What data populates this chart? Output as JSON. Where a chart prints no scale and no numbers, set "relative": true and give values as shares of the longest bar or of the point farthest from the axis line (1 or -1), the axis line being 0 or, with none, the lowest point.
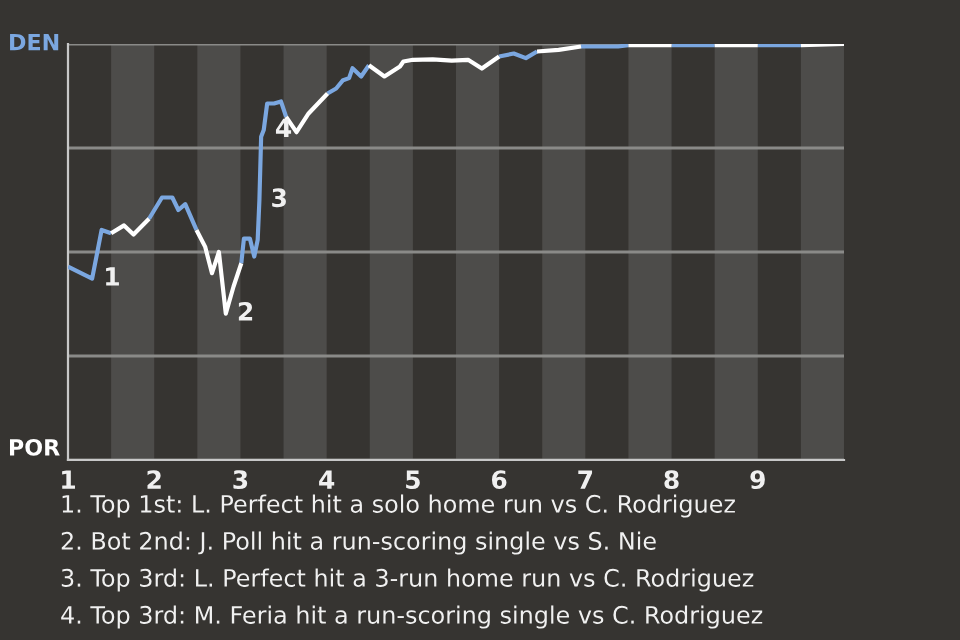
{
  "chart_data": {
    "type": "line",
    "relative": true,
    "series": [
      {
        "color": "#7ba7e0",
        "x": [
          1.0,
          1.28,
          1.39,
          1.5,
          null,
          1.94,
          2.09,
          2.21,
          2.28,
          2.36,
          2.49,
          null,
          3.01,
          3.04,
          3.11,
          3.16,
          3.2,
          3.22,
          3.24,
          3.27,
          3.31,
          3.39,
          3.47,
          3.53,
          null,
          4.01,
          4.11,
          4.19,
          4.26,
          4.3,
          4.4,
          4.49,
          null,
          6.0,
          6.17,
          6.31,
          6.44,
          null,
          6.95,
          7.38,
          7.5,
          null,
          8.0,
          8.5,
          null,
          9.0,
          9.5
        ],
        "values": [
          0.465,
          0.436,
          0.553,
          0.545,
          null,
          0.58,
          0.631,
          0.631,
          0.601,
          0.615,
          0.553,
          null,
          0.473,
          0.532,
          0.532,
          0.489,
          0.529,
          0.625,
          0.777,
          0.793,
          0.857,
          0.857,
          0.862,
          0.825,
          null,
          0.881,
          0.893,
          0.913,
          0.918,
          0.942,
          0.922,
          0.949,
          null,
          0.97,
          0.977,
          0.966,
          0.982,
          null,
          0.994,
          0.994,
          0.997,
          null,
          0.997,
          0.997,
          null,
          0.997,
          0.997
        ]
      },
      {
        "color": "#ffffff",
        "x": [
          1.5,
          1.65,
          1.76,
          1.94,
          null,
          2.49,
          2.59,
          2.67,
          2.75,
          2.83,
          2.92,
          3.01,
          null,
          3.53,
          3.65,
          3.79,
          4.01,
          null,
          4.49,
          4.67,
          4.85,
          4.89,
          5.0,
          5.23,
          5.45,
          5.64,
          5.8,
          6.0,
          null,
          6.44,
          6.69,
          6.95,
          null,
          7.5,
          8.0,
          null,
          8.5,
          9.0,
          null,
          9.5,
          10.0
        ],
        "values": [
          0.545,
          0.564,
          0.542,
          0.58,
          null,
          0.553,
          0.513,
          0.449,
          0.5,
          0.352,
          0.417,
          0.473,
          null,
          0.825,
          0.788,
          0.833,
          0.881,
          null,
          0.949,
          0.922,
          0.946,
          0.958,
          0.962,
          0.963,
          0.96,
          0.962,
          0.941,
          0.97,
          null,
          0.982,
          0.986,
          0.994,
          null,
          0.997,
          0.997,
          null,
          0.997,
          0.997,
          null,
          0.997,
          1.0
        ]
      }
    ],
    "xlim": [
      1,
      10
    ],
    "xticks": [
      1,
      2,
      3,
      4,
      5,
      6,
      7,
      8,
      9
    ],
    "grid": "y",
    "bands": [
      {
        "axis": "x",
        "from": 1.5,
        "to": 2,
        "color": "#4d4c4a"
      },
      {
        "axis": "x",
        "from": 2.5,
        "to": 3,
        "color": "#4d4c4a"
      },
      {
        "axis": "x",
        "from": 3.5,
        "to": 4,
        "color": "#4d4c4a"
      },
      {
        "axis": "x",
        "from": 4.5,
        "to": 5,
        "color": "#4d4c4a"
      },
      {
        "axis": "x",
        "from": 5.5,
        "to": 6,
        "color": "#4d4c4a"
      },
      {
        "axis": "x",
        "from": 6.5,
        "to": 7,
        "color": "#4d4c4a"
      },
      {
        "axis": "x",
        "from": 7.5,
        "to": 8,
        "color": "#4d4c4a"
      },
      {
        "axis": "x",
        "from": 8.5,
        "to": 9,
        "color": "#4d4c4a"
      },
      {
        "axis": "x",
        "from": 9.5,
        "to": 10,
        "color": "#4d4c4a"
      }
    ],
    "annotations": [
      "DEN",
      "POR",
      {
        "text": "1",
        "x": 1.28,
        "y": 0.436
      },
      {
        "text": "2",
        "x": 2.83,
        "y": 0.352
      },
      {
        "text": "3",
        "x": 3.22,
        "y": 0.625
      },
      {
        "text": "4",
        "x": 3.27,
        "y": 0.793
      },
      "1. Top 1st: L. Perfect hit a solo home run vs C. Rodriguez",
      "2. Bot 2nd: J. Poll hit a run-scoring single vs S. Nie",
      "3. Top 3rd: L. Perfect hit a 3-run home run vs C. Rodriguez",
      "4. Top 3rd: M. Feria hit a run-scoring single vs C. Rodriguez"
    ]
  }
}
